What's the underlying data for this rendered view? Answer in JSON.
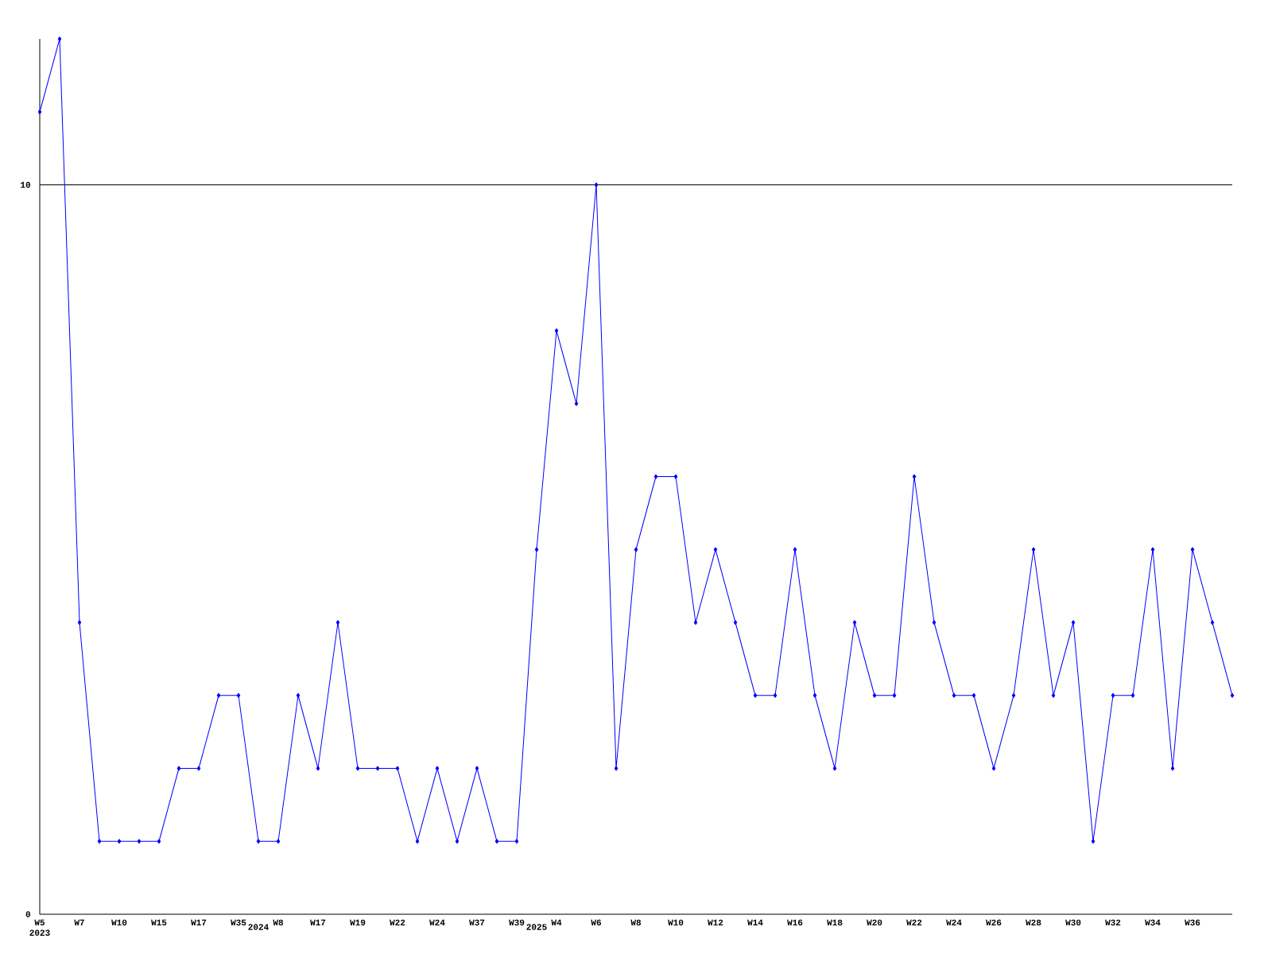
{
  "chart_data": {
    "type": "line",
    "categories": [
      "W5 2023",
      null,
      "W7",
      null,
      "W10",
      null,
      "W15",
      null,
      "W17",
      null,
      "W35",
      "2024",
      "W8",
      null,
      "W17",
      null,
      "W19",
      null,
      "W22",
      null,
      "W24",
      null,
      "W37",
      null,
      "W39",
      "2025",
      "W4",
      null,
      "W6",
      null,
      "W8",
      null,
      "W10",
      null,
      "W12",
      null,
      "W14",
      null,
      "W16",
      null,
      "W18",
      null,
      "W20",
      null,
      "W22",
      null,
      "W24",
      null,
      "W26",
      null,
      "W28",
      null,
      "W30",
      null,
      "W32",
      null,
      "W34",
      null,
      "W36",
      null,
      null
    ],
    "series": [
      {
        "color": "#0000ff",
        "values": [
          11,
          12,
          4,
          1,
          1,
          1,
          1,
          2,
          2,
          3,
          3,
          1,
          1,
          3,
          2,
          4,
          2,
          2,
          2,
          1,
          2,
          1,
          2,
          1,
          1,
          5,
          8,
          7,
          10,
          2,
          5,
          6,
          6,
          4,
          5,
          4,
          3,
          3,
          5,
          3,
          2,
          4,
          3,
          3,
          6,
          4,
          3,
          3,
          2,
          3,
          5,
          3,
          4,
          1,
          3,
          3,
          5,
          2,
          5,
          4,
          3
        ]
      }
    ],
    "ylim": [
      0,
      12
    ],
    "yticks": [
      0,
      10
    ],
    "ref_lines": [
      {
        "axis": "y",
        "value": 10,
        "color": "#000000"
      }
    ],
    "marker": "diamond",
    "line_style": "solid",
    "grid": false
  }
}
